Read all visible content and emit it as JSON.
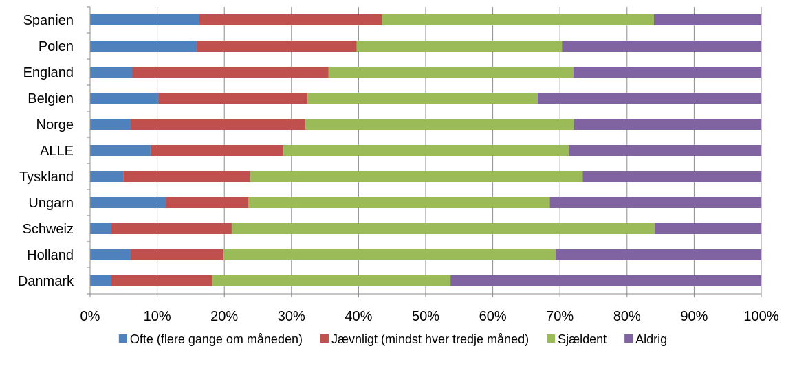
{
  "chart_data": {
    "type": "bar",
    "orientation": "horizontal",
    "stacked": "percent",
    "categories": [
      "Spanien",
      "Polen",
      "England",
      "Belgien",
      "Norge",
      "ALLE",
      "Tyskland",
      "Ungarn",
      "Schweiz",
      "Holland",
      "Danmark"
    ],
    "series": [
      {
        "name": "Ofte (flere gange om måneden)",
        "color": "#4f81bd",
        "values": [
          16.2,
          15.9,
          6.3,
          10.2,
          6.0,
          9.0,
          5.0,
          11.3,
          3.1,
          6.0,
          3.1
        ]
      },
      {
        "name": "Jævnligt (mindst hver tredje måned)",
        "color": "#c0504d",
        "values": [
          27.3,
          23.8,
          29.2,
          22.2,
          26.1,
          19.8,
          18.9,
          12.3,
          18.0,
          13.9,
          15.1
        ]
      },
      {
        "name": "Sjældent",
        "color": "#9bbb59",
        "values": [
          40.5,
          30.6,
          36.5,
          34.3,
          40.0,
          42.5,
          49.5,
          44.9,
          63.0,
          49.5,
          35.5
        ]
      },
      {
        "name": "Aldrig",
        "color": "#8064a2",
        "values": [
          16.0,
          29.7,
          28.0,
          33.3,
          27.9,
          28.7,
          26.6,
          31.5,
          15.9,
          30.6,
          46.3
        ]
      }
    ],
    "x_ticks": [
      "0%",
      "10%",
      "20%",
      "30%",
      "40%",
      "50%",
      "60%",
      "70%",
      "80%",
      "90%",
      "100%"
    ],
    "xlim": [
      0,
      100
    ],
    "grid": "vertical",
    "legend_position": "bottom",
    "title": "",
    "xlabel": "",
    "ylabel": ""
  }
}
